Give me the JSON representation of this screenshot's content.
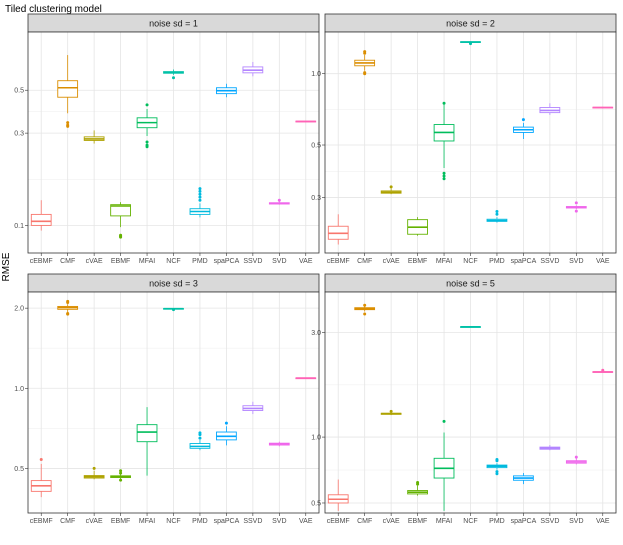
{
  "title": "Tiled clustering model",
  "y_axis_label": "RMSE",
  "chart_data": [
    {
      "type": "boxplot",
      "panel": "noise sd = 1",
      "scale": "log10",
      "ylim": [
        0.072,
        1.0
      ],
      "y_ticks": [
        {
          "v": 0.1,
          "label": "0.1"
        },
        {
          "v": 0.3,
          "label": "0.3"
        },
        {
          "v": 0.5,
          "label": "0.5"
        }
      ],
      "categories": [
        "cEBMF",
        "CMF",
        "cVAE",
        "EBMF",
        "MFAI",
        "NCF",
        "PMD",
        "spaPCA",
        "SSVD",
        "SVD",
        "VAE"
      ],
      "boxes": [
        {
          "min": 0.094,
          "q1": 0.1,
          "median": 0.105,
          "q3": 0.114,
          "max": 0.135,
          "outliers": []
        },
        {
          "min": 0.38,
          "q1": 0.46,
          "median": 0.515,
          "q3": 0.56,
          "max": 0.76,
          "outliers": [
            0.33,
            0.325,
            0.34
          ]
        },
        {
          "min": 0.265,
          "q1": 0.275,
          "median": 0.28,
          "q3": 0.287,
          "max": 0.31,
          "outliers": []
        },
        {
          "min": 0.098,
          "q1": 0.112,
          "median": 0.126,
          "q3": 0.128,
          "max": 0.132,
          "outliers": [
            0.088,
            0.089,
            0.087
          ]
        },
        {
          "min": 0.29,
          "q1": 0.32,
          "median": 0.34,
          "q3": 0.36,
          "max": 0.4,
          "outliers": [
            0.27,
            0.26,
            0.255,
            0.42
          ]
        },
        {
          "min": 0.6,
          "q1": 0.612,
          "median": 0.618,
          "q3": 0.624,
          "max": 0.64,
          "outliers": [
            0.58
          ]
        },
        {
          "min": 0.11,
          "q1": 0.114,
          "median": 0.118,
          "q3": 0.122,
          "max": 0.13,
          "outliers": [
            0.135,
            0.14,
            0.145,
            0.15,
            0.155
          ]
        },
        {
          "min": 0.46,
          "q1": 0.48,
          "median": 0.497,
          "q3": 0.515,
          "max": 0.54,
          "outliers": []
        },
        {
          "min": 0.59,
          "q1": 0.615,
          "median": 0.635,
          "q3": 0.66,
          "max": 0.7,
          "outliers": []
        },
        {
          "min": 0.128,
          "q1": 0.129,
          "median": 0.13,
          "q3": 0.131,
          "max": 0.133,
          "outliers": [
            0.135
          ]
        },
        {
          "min": 0.342,
          "q1": 0.344,
          "median": 0.345,
          "q3": 0.346,
          "max": 0.348,
          "outliers": []
        }
      ]
    },
    {
      "type": "boxplot",
      "panel": "noise sd = 2",
      "scale": "log10",
      "ylim": [
        0.175,
        1.5
      ],
      "y_ticks": [
        {
          "v": 0.3,
          "label": "0.3"
        },
        {
          "v": 0.5,
          "label": "0.5"
        },
        {
          "v": 1.0,
          "label": "1.0"
        }
      ],
      "categories": [
        "cEBMF",
        "CMF",
        "cVAE",
        "EBMF",
        "MFAI",
        "NCF",
        "PMD",
        "spaPCA",
        "SSVD",
        "SVD",
        "VAE"
      ],
      "boxes": [
        {
          "min": 0.19,
          "q1": 0.2,
          "median": 0.212,
          "q3": 0.227,
          "max": 0.255,
          "outliers": []
        },
        {
          "min": 1.03,
          "q1": 1.08,
          "median": 1.11,
          "q3": 1.14,
          "max": 1.2,
          "outliers": [
            1.0,
            1.01,
            1.22,
            1.24
          ]
        },
        {
          "min": 0.31,
          "q1": 0.313,
          "median": 0.316,
          "q3": 0.32,
          "max": 0.328,
          "outliers": [
            0.333
          ]
        },
        {
          "min": 0.207,
          "q1": 0.21,
          "median": 0.225,
          "q3": 0.242,
          "max": 0.248,
          "outliers": []
        },
        {
          "min": 0.4,
          "q1": 0.52,
          "median": 0.565,
          "q3": 0.61,
          "max": 0.74,
          "outliers": [
            0.38,
            0.37,
            0.36,
            0.75
          ]
        },
        {
          "min": 1.35,
          "q1": 1.355,
          "median": 1.36,
          "q3": 1.365,
          "max": 1.37,
          "outliers": [
            1.34
          ]
        },
        {
          "min": 0.235,
          "q1": 0.238,
          "median": 0.24,
          "q3": 0.243,
          "max": 0.248,
          "outliers": [
            0.255,
            0.262
          ]
        },
        {
          "min": 0.53,
          "q1": 0.565,
          "median": 0.58,
          "q3": 0.595,
          "max": 0.62,
          "outliers": [
            0.64
          ]
        },
        {
          "min": 0.67,
          "q1": 0.685,
          "median": 0.7,
          "q3": 0.72,
          "max": 0.75,
          "outliers": []
        },
        {
          "min": 0.268,
          "q1": 0.271,
          "median": 0.273,
          "q3": 0.275,
          "max": 0.278,
          "outliers": [
            0.263,
            0.285
          ]
        },
        {
          "min": 0.715,
          "q1": 0.718,
          "median": 0.72,
          "q3": 0.722,
          "max": 0.725,
          "outliers": []
        }
      ]
    },
    {
      "type": "boxplot",
      "panel": "noise sd = 3",
      "scale": "log10",
      "ylim": [
        0.34,
        2.3
      ],
      "y_ticks": [
        {
          "v": 0.5,
          "label": "0.5"
        },
        {
          "v": 1.0,
          "label": "1.0"
        },
        {
          "v": 2.0,
          "label": "2.0"
        }
      ],
      "categories": [
        "cEBMF",
        "CMF",
        "cVAE",
        "EBMF",
        "MFAI",
        "NCF",
        "PMD",
        "spaPCA",
        "SSVD",
        "SVD",
        "VAE"
      ],
      "boxes": [
        {
          "min": 0.39,
          "q1": 0.41,
          "median": 0.43,
          "q3": 0.45,
          "max": 0.52,
          "outliers": [
            0.54
          ]
        },
        {
          "min": 1.93,
          "q1": 1.98,
          "median": 2.01,
          "q3": 2.03,
          "max": 2.07,
          "outliers": [
            1.9,
            1.91,
            2.1,
            2.12
          ]
        },
        {
          "min": 0.455,
          "q1": 0.46,
          "median": 0.465,
          "q3": 0.47,
          "max": 0.49,
          "outliers": [
            0.5
          ]
        },
        {
          "min": 0.455,
          "q1": 0.462,
          "median": 0.466,
          "q3": 0.469,
          "max": 0.475,
          "outliers": [
            0.452,
            0.48,
            0.49
          ]
        },
        {
          "min": 0.47,
          "q1": 0.63,
          "median": 0.685,
          "q3": 0.73,
          "max": 0.85,
          "outliers": []
        },
        {
          "min": 1.98,
          "q1": 1.985,
          "median": 1.99,
          "q3": 1.995,
          "max": 2.0,
          "outliers": [
            1.975
          ]
        },
        {
          "min": 0.585,
          "q1": 0.595,
          "median": 0.605,
          "q3": 0.62,
          "max": 0.64,
          "outliers": [
            0.65,
            0.67,
            0.68
          ]
        },
        {
          "min": 0.61,
          "q1": 0.64,
          "median": 0.66,
          "q3": 0.685,
          "max": 0.72,
          "outliers": [
            0.74
          ]
        },
        {
          "min": 0.8,
          "q1": 0.825,
          "median": 0.84,
          "q3": 0.86,
          "max": 0.89,
          "outliers": []
        },
        {
          "min": 0.605,
          "q1": 0.612,
          "median": 0.617,
          "q3": 0.622,
          "max": 0.63,
          "outliers": []
        },
        {
          "min": 1.088,
          "q1": 1.09,
          "median": 1.092,
          "q3": 1.094,
          "max": 1.096,
          "outliers": []
        }
      ]
    },
    {
      "type": "boxplot",
      "panel": "noise sd = 5",
      "scale": "log10",
      "ylim": [
        0.45,
        4.6
      ],
      "y_ticks": [
        {
          "v": 0.5,
          "label": "0.5"
        },
        {
          "v": 1.0,
          "label": "1.0"
        },
        {
          "v": 3.0,
          "label": "3.0"
        }
      ],
      "categories": [
        "cEBMF",
        "CMF",
        "cVAE",
        "EBMF",
        "MFAI",
        "NCF",
        "PMD",
        "spaPCA",
        "SSVD",
        "SVD",
        "VAE"
      ],
      "boxes": [
        {
          "min": 0.46,
          "q1": 0.5,
          "median": 0.52,
          "q3": 0.545,
          "max": 0.64,
          "outliers": []
        },
        {
          "min": 3.75,
          "q1": 3.82,
          "median": 3.86,
          "q3": 3.9,
          "max": 3.97,
          "outliers": [
            3.65,
            4.0
          ]
        },
        {
          "min": 1.26,
          "q1": 1.27,
          "median": 1.28,
          "q3": 1.285,
          "max": 1.3,
          "outliers": [
            1.31
          ]
        },
        {
          "min": 0.54,
          "q1": 0.55,
          "median": 0.56,
          "q3": 0.57,
          "max": 0.6,
          "outliers": [
            0.61,
            0.62
          ]
        },
        {
          "min": 0.46,
          "q1": 0.65,
          "median": 0.72,
          "q3": 0.8,
          "max": 1.05,
          "outliers": [
            1.18
          ]
        },
        {
          "min": 3.18,
          "q1": 3.185,
          "median": 3.19,
          "q3": 3.195,
          "max": 3.2,
          "outliers": []
        },
        {
          "min": 0.71,
          "q1": 0.725,
          "median": 0.735,
          "q3": 0.745,
          "max": 0.76,
          "outliers": [
            0.68,
            0.695,
            0.78,
            0.79
          ]
        },
        {
          "min": 0.61,
          "q1": 0.635,
          "median": 0.65,
          "q3": 0.665,
          "max": 0.685,
          "outliers": []
        },
        {
          "min": 0.87,
          "q1": 0.88,
          "median": 0.89,
          "q3": 0.9,
          "max": 0.92,
          "outliers": []
        },
        {
          "min": 0.75,
          "q1": 0.76,
          "median": 0.77,
          "q3": 0.78,
          "max": 0.8,
          "outliers": [
            0.81
          ]
        },
        {
          "min": 1.97,
          "q1": 1.98,
          "median": 1.985,
          "q3": 1.99,
          "max": 2.0,
          "outliers": [
            2.02
          ]
        }
      ]
    }
  ],
  "colors": [
    "#F8766D",
    "#DB8E00",
    "#AEA200",
    "#64B200",
    "#00BD5C",
    "#00C1A7",
    "#00BADE",
    "#00A6FF",
    "#B385FF",
    "#EF67EB",
    "#FF63B6"
  ]
}
